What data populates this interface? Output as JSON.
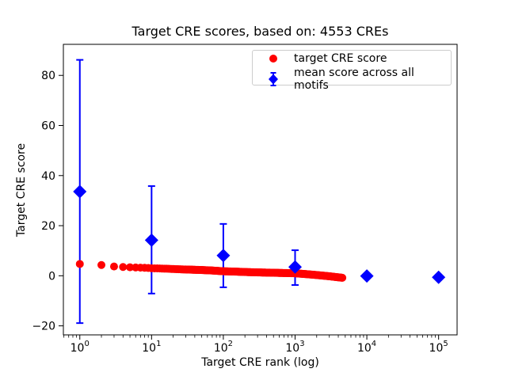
{
  "chart_data": {
    "type": "scatter",
    "title": "Target CRE scores, based on: 4553 CREs",
    "xlabel": "Target CRE rank (log)",
    "ylabel": "Target CRE score",
    "x_scale": "log",
    "grid": false,
    "legend_position": "upper right",
    "n_cres": 4553,
    "xlim": [
      0.59,
      181000
    ],
    "ylim": [
      -23.6,
      92.4
    ],
    "x_ticks": [
      1,
      10,
      100,
      1000,
      10000,
      100000
    ],
    "x_tick_labels": [
      "10^0",
      "10^1",
      "10^2",
      "10^3",
      "10^4",
      "10^5"
    ],
    "y_ticks": [
      -20,
      0,
      20,
      40,
      60,
      80
    ],
    "y_tick_labels": [
      "−20",
      "0",
      "20",
      "40",
      "60",
      "80"
    ],
    "series": [
      {
        "label": "target CRE score",
        "type": "scatter",
        "marker": "circle",
        "color": "#ff0000",
        "n_points": 4553,
        "note": "dense monotonically decreasing series, ranks 1..4553; sampled anchor points below, interpolate in log10(rank)",
        "x": [
          1,
          2,
          3,
          4,
          5,
          6,
          8,
          10,
          15,
          20,
          30,
          50,
          70,
          100,
          150,
          200,
          300,
          500,
          700,
          1000,
          1500,
          2000,
          3000,
          4553
        ],
        "y": [
          4.7,
          4.3,
          3.7,
          3.5,
          3.4,
          3.3,
          3.2,
          3.0,
          2.85,
          2.7,
          2.5,
          2.3,
          2.1,
          1.8,
          1.65,
          1.5,
          1.35,
          1.2,
          1.1,
          1.0,
          0.6,
          0.3,
          -0.2,
          -0.8
        ]
      },
      {
        "label": "mean score across all motifs",
        "type": "errorbar",
        "marker": "diamond",
        "color": "#0000ff",
        "x": [
          1,
          10,
          100,
          1000,
          10000,
          100000
        ],
        "y": [
          33.6,
          14.2,
          8.1,
          3.5,
          -0.1,
          -0.6
        ],
        "err_low": [
          -18.9,
          -7.1,
          -4.6,
          -3.7,
          -0.1,
          -0.6
        ],
        "err_high": [
          86.2,
          35.8,
          20.7,
          10.2,
          -0.1,
          -0.6
        ]
      }
    ]
  }
}
